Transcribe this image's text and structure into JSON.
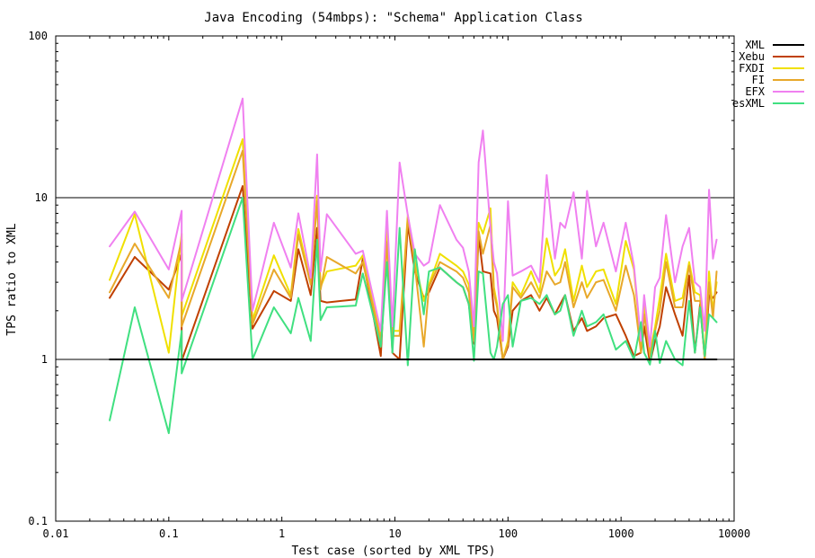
{
  "chart_data": {
    "type": "line",
    "title": "Java Encoding (54mbps): \"Schema\" Application Class",
    "xlabel": "Test case (sorted by XML TPS)",
    "ylabel": "TPS ratio to XML",
    "xscale": "log",
    "yscale": "log",
    "xlim": [
      0.01,
      10000
    ],
    "ylim": [
      0.1,
      100
    ],
    "xticks": [
      0.01,
      0.1,
      1,
      10,
      100,
      1000,
      10000
    ],
    "xtick_labels": [
      "0.01",
      "0.1",
      "1",
      "10",
      "100",
      "1000",
      "10000"
    ],
    "yticks": [
      0.1,
      1,
      10,
      100
    ],
    "ytick_labels": [
      "0.1",
      "1",
      "10",
      "100"
    ],
    "horizontal_gridlines": [
      1,
      10
    ],
    "legend_position": "top-right outside",
    "series": [
      {
        "name": "XML",
        "color": "#000000",
        "x": [
          0.03,
          7000
        ],
        "y": [
          1.0,
          1.0
        ]
      },
      {
        "name": "Xebu",
        "color": "#c04000",
        "x": [
          0.03,
          0.05,
          0.1,
          0.13,
          0.13,
          0.45,
          0.55,
          0.85,
          1.2,
          1.4,
          1.8,
          2.05,
          2.2,
          2.5,
          4.5,
          5.2,
          7.5,
          8.5,
          9.5,
          11,
          13,
          15,
          18,
          20,
          25,
          35,
          40,
          45,
          50,
          55,
          60,
          70,
          75,
          80,
          90,
          100,
          110,
          130,
          160,
          190,
          220,
          260,
          290,
          320,
          380,
          450,
          500,
          600,
          700,
          900,
          1100,
          1300,
          1500,
          1600,
          1800,
          2000,
          2200,
          2500,
          3000,
          3500,
          4000,
          4500,
          5000,
          5500,
          6000,
          6500,
          7000
        ],
        "y": [
          2.4,
          4.3,
          2.7,
          4.5,
          0.98,
          11.8,
          1.55,
          2.65,
          2.3,
          4.8,
          2.5,
          6.5,
          2.3,
          2.25,
          2.35,
          4.2,
          1.05,
          6.0,
          1.1,
          1.0,
          6.8,
          3.5,
          2.4,
          2.6,
          3.7,
          3.0,
          2.8,
          2.2,
          1.25,
          5.8,
          3.5,
          3.4,
          2.0,
          1.8,
          1.0,
          1.2,
          2.0,
          2.3,
          2.5,
          2.0,
          2.4,
          1.9,
          2.2,
          2.5,
          1.5,
          1.8,
          1.5,
          1.6,
          1.8,
          1.9,
          1.4,
          1.05,
          1.1,
          1.6,
          0.95,
          1.3,
          1.6,
          2.8,
          1.9,
          1.4,
          3.3,
          1.1,
          2.2,
          1.0,
          2.5,
          2.4,
          2.6
        ]
      },
      {
        "name": "FXDI",
        "color": "#f0e000",
        "x": [
          0.03,
          0.05,
          0.1,
          0.13,
          0.13,
          0.45,
          0.55,
          0.85,
          1.2,
          1.4,
          1.8,
          2.05,
          2.2,
          2.5,
          4.5,
          5.2,
          7.5,
          8.5,
          9.5,
          11,
          13,
          15,
          18,
          20,
          25,
          35,
          40,
          45,
          50,
          55,
          60,
          70,
          75,
          80,
          90,
          100,
          110,
          130,
          160,
          190,
          220,
          260,
          290,
          320,
          380,
          450,
          500,
          600,
          700,
          900,
          1100,
          1300,
          1500,
          1600,
          1800,
          2000,
          2200,
          2500,
          3000,
          3500,
          4000,
          4500,
          5000,
          5500,
          6000,
          6500,
          7000
        ],
        "y": [
          3.1,
          7.9,
          1.1,
          6.0,
          1.85,
          23.0,
          1.75,
          4.4,
          2.5,
          6.4,
          3.0,
          10.3,
          2.8,
          3.5,
          3.8,
          4.4,
          1.4,
          7.0,
          1.5,
          1.5,
          7.8,
          4.0,
          2.3,
          2.9,
          4.5,
          3.8,
          3.5,
          2.9,
          1.4,
          7.0,
          6.0,
          8.6,
          2.8,
          2.2,
          1.0,
          1.3,
          3.0,
          2.5,
          3.5,
          2.6,
          5.6,
          3.3,
          3.7,
          4.8,
          2.3,
          3.8,
          2.8,
          3.5,
          3.6,
          2.2,
          5.4,
          3.6,
          1.2,
          2.2,
          1.1,
          1.6,
          2.4,
          4.5,
          2.3,
          2.4,
          4.0,
          2.6,
          2.5,
          1.0,
          3.5,
          2.0,
          3.0
        ]
      },
      {
        "name": "FI",
        "color": "#e8a82a",
        "x": [
          0.03,
          0.05,
          0.1,
          0.13,
          0.13,
          0.45,
          0.55,
          0.85,
          1.2,
          1.4,
          1.8,
          2.05,
          2.2,
          2.5,
          4.5,
          5.2,
          7.5,
          8.5,
          9.5,
          11,
          13,
          15,
          18,
          20,
          25,
          35,
          40,
          45,
          50,
          55,
          60,
          70,
          75,
          80,
          90,
          100,
          110,
          130,
          160,
          190,
          220,
          260,
          290,
          320,
          380,
          450,
          500,
          600,
          700,
          900,
          1100,
          1300,
          1500,
          1600,
          1800,
          2000,
          2200,
          2500,
          3000,
          3500,
          4000,
          4500,
          5000,
          5500,
          6000,
          6500,
          7000
        ],
        "y": [
          2.6,
          5.2,
          2.4,
          5.5,
          1.6,
          19.5,
          1.65,
          3.6,
          2.4,
          5.9,
          2.9,
          9.5,
          2.7,
          4.3,
          3.4,
          4.0,
          1.3,
          5.2,
          1.4,
          1.4,
          7.5,
          3.8,
          1.2,
          2.8,
          4.0,
          3.5,
          3.2,
          2.6,
          1.3,
          6.2,
          4.5,
          6.8,
          2.6,
          2.1,
          1.0,
          1.25,
          2.8,
          2.4,
          3.0,
          2.4,
          3.5,
          2.9,
          3.0,
          4.0,
          2.1,
          3.0,
          2.4,
          3.0,
          3.1,
          2.0,
          3.8,
          2.5,
          1.1,
          1.9,
          1.05,
          1.5,
          2.0,
          4.0,
          2.1,
          2.1,
          3.8,
          2.3,
          2.3,
          1.0,
          3.0,
          1.8,
          3.5
        ]
      },
      {
        "name": "EFX",
        "color": "#f080f0",
        "x": [
          0.03,
          0.05,
          0.1,
          0.13,
          0.13,
          0.45,
          0.55,
          0.85,
          1.2,
          1.4,
          1.8,
          2.05,
          2.2,
          2.5,
          4.5,
          5.2,
          7.5,
          8.5,
          9.5,
          11,
          13,
          15,
          18,
          20,
          25,
          35,
          40,
          45,
          50,
          55,
          60,
          70,
          75,
          80,
          90,
          100,
          110,
          130,
          160,
          190,
          220,
          260,
          290,
          320,
          380,
          450,
          500,
          600,
          700,
          900,
          1100,
          1300,
          1500,
          1600,
          1800,
          2000,
          2200,
          2500,
          3000,
          3500,
          4000,
          4500,
          5000,
          5500,
          6000,
          6500,
          7000
        ],
        "y": [
          5.0,
          8.2,
          3.6,
          8.3,
          2.3,
          41.0,
          2.0,
          7.0,
          3.7,
          8.0,
          3.2,
          18.5,
          3.5,
          7.9,
          4.5,
          4.7,
          1.5,
          8.3,
          1.6,
          16.5,
          7.8,
          4.5,
          3.8,
          4.0,
          9.0,
          5.5,
          4.9,
          3.5,
          1.6,
          16.5,
          26.0,
          6.5,
          4.0,
          3.4,
          1.3,
          9.5,
          3.3,
          3.5,
          3.8,
          3.0,
          13.8,
          4.2,
          7.0,
          6.5,
          10.8,
          4.2,
          11.0,
          5.0,
          7.0,
          3.5,
          7.0,
          3.8,
          1.3,
          2.5,
          1.2,
          2.8,
          3.2,
          7.8,
          3.0,
          5.0,
          6.5,
          3.0,
          2.8,
          1.5,
          11.2,
          4.2,
          5.5
        ]
      },
      {
        "name": "esXML",
        "color": "#40e080",
        "x": [
          0.03,
          0.05,
          0.1,
          0.13,
          0.13,
          0.45,
          0.55,
          0.85,
          1.2,
          1.4,
          1.8,
          2.05,
          2.2,
          2.5,
          4.5,
          5.2,
          7.5,
          8.5,
          9.5,
          11,
          13,
          15,
          18,
          20,
          25,
          35,
          40,
          45,
          50,
          55,
          60,
          70,
          75,
          80,
          90,
          100,
          110,
          130,
          160,
          190,
          220,
          260,
          290,
          320,
          380,
          450,
          500,
          600,
          700,
          900,
          1100,
          1300,
          1500,
          1600,
          1800,
          2000,
          2200,
          2500,
          3000,
          3500,
          4000,
          4500,
          5000,
          5500,
          6000,
          6500,
          7000
        ],
        "y": [
          0.42,
          2.1,
          0.35,
          1.5,
          0.82,
          10.0,
          1.0,
          2.1,
          1.45,
          2.4,
          1.3,
          5.5,
          1.75,
          2.1,
          2.15,
          3.4,
          1.2,
          4.0,
          1.1,
          6.5,
          0.92,
          4.8,
          1.9,
          3.5,
          3.7,
          3.0,
          2.8,
          2.2,
          0.98,
          3.5,
          3.4,
          1.1,
          1.0,
          1.2,
          2.2,
          2.5,
          1.2,
          2.3,
          2.4,
          2.2,
          2.5,
          1.9,
          2.0,
          2.5,
          1.4,
          2.0,
          1.6,
          1.7,
          1.9,
          1.15,
          1.3,
          1.0,
          1.7,
          1.1,
          0.93,
          1.5,
          0.95,
          1.3,
          1.0,
          0.92,
          2.3,
          1.1,
          2.1,
          1.05,
          1.9,
          1.8,
          1.7
        ]
      }
    ]
  }
}
